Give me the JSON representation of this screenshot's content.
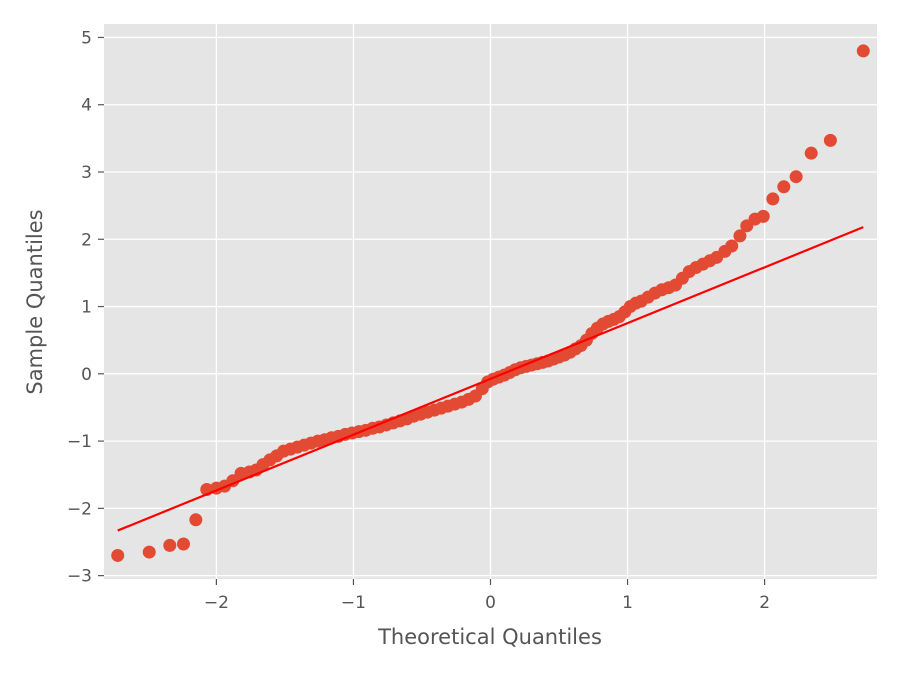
{
  "chart_data": {
    "type": "scatter",
    "title": "",
    "xlabel": "Theoretical Quantiles",
    "ylabel": "Sample Quantiles",
    "xlim": [
      -2.82,
      2.82
    ],
    "ylim": [
      -3.05,
      5.2
    ],
    "x_ticks": [
      -2,
      -1,
      0,
      1,
      2
    ],
    "x_tick_labels": [
      "−2",
      "−1",
      "0",
      "1",
      "2"
    ],
    "y_ticks": [
      -3,
      -2,
      -1,
      0,
      1,
      2,
      3,
      4,
      5
    ],
    "y_tick_labels": [
      "−3",
      "−2",
      "−1",
      "0",
      "1",
      "2",
      "3",
      "4",
      "5"
    ],
    "grid": true,
    "colors": {
      "background": "#E5E5E5",
      "grid": "#FFFFFF",
      "points": "#E24A33",
      "line": "#FF0000",
      "text": "#555555"
    },
    "reference_line": {
      "x": [
        -2.72,
        2.72
      ],
      "y": [
        -2.33,
        2.18
      ]
    },
    "series": [
      {
        "points": [
          [
            -2.72,
            -2.7
          ],
          [
            -2.49,
            -2.65
          ],
          [
            -2.34,
            -2.55
          ],
          [
            -2.24,
            -2.53
          ],
          [
            -2.15,
            -2.17
          ],
          [
            -2.07,
            -1.72
          ],
          [
            -2.0,
            -1.7
          ],
          [
            -1.94,
            -1.67
          ],
          [
            -1.88,
            -1.59
          ],
          [
            -1.82,
            -1.48
          ],
          [
            -1.76,
            -1.46
          ],
          [
            -1.71,
            -1.43
          ],
          [
            -1.66,
            -1.35
          ],
          [
            -1.61,
            -1.28
          ],
          [
            -1.56,
            -1.22
          ],
          [
            -1.51,
            -1.15
          ],
          [
            -1.46,
            -1.12
          ],
          [
            -1.41,
            -1.09
          ],
          [
            -1.36,
            -1.06
          ],
          [
            -1.31,
            -1.03
          ],
          [
            -1.26,
            -1.0
          ],
          [
            -1.21,
            -0.98
          ],
          [
            -1.16,
            -0.95
          ],
          [
            -1.11,
            -0.93
          ],
          [
            -1.06,
            -0.9
          ],
          [
            -1.01,
            -0.88
          ],
          [
            -0.96,
            -0.86
          ],
          [
            -0.91,
            -0.84
          ],
          [
            -0.86,
            -0.81
          ],
          [
            -0.81,
            -0.79
          ],
          [
            -0.76,
            -0.76
          ],
          [
            -0.71,
            -0.73
          ],
          [
            -0.66,
            -0.7
          ],
          [
            -0.61,
            -0.67
          ],
          [
            -0.56,
            -0.63
          ],
          [
            -0.51,
            -0.6
          ],
          [
            -0.46,
            -0.57
          ],
          [
            -0.41,
            -0.54
          ],
          [
            -0.36,
            -0.51
          ],
          [
            -0.31,
            -0.48
          ],
          [
            -0.26,
            -0.45
          ],
          [
            -0.21,
            -0.42
          ],
          [
            -0.16,
            -0.38
          ],
          [
            -0.11,
            -0.33
          ],
          [
            -0.06,
            -0.22
          ],
          [
            -0.02,
            -0.12
          ],
          [
            0.02,
            -0.08
          ],
          [
            0.06,
            -0.05
          ],
          [
            0.1,
            -0.02
          ],
          [
            0.14,
            0.02
          ],
          [
            0.18,
            0.06
          ],
          [
            0.22,
            0.09
          ],
          [
            0.26,
            0.11
          ],
          [
            0.3,
            0.13
          ],
          [
            0.34,
            0.15
          ],
          [
            0.38,
            0.17
          ],
          [
            0.42,
            0.19
          ],
          [
            0.46,
            0.22
          ],
          [
            0.5,
            0.25
          ],
          [
            0.54,
            0.28
          ],
          [
            0.58,
            0.32
          ],
          [
            0.62,
            0.37
          ],
          [
            0.66,
            0.42
          ],
          [
            0.7,
            0.5
          ],
          [
            0.74,
            0.6
          ],
          [
            0.78,
            0.68
          ],
          [
            0.82,
            0.74
          ],
          [
            0.86,
            0.78
          ],
          [
            0.9,
            0.81
          ],
          [
            0.94,
            0.85
          ],
          [
            0.98,
            0.92
          ],
          [
            1.02,
            1.0
          ],
          [
            1.06,
            1.05
          ],
          [
            1.1,
            1.08
          ],
          [
            1.15,
            1.14
          ],
          [
            1.2,
            1.2
          ],
          [
            1.25,
            1.25
          ],
          [
            1.3,
            1.28
          ],
          [
            1.35,
            1.32
          ],
          [
            1.4,
            1.42
          ],
          [
            1.45,
            1.52
          ],
          [
            1.5,
            1.58
          ],
          [
            1.55,
            1.63
          ],
          [
            1.6,
            1.68
          ],
          [
            1.65,
            1.73
          ],
          [
            1.71,
            1.82
          ],
          [
            1.76,
            1.9
          ],
          [
            1.82,
            2.05
          ],
          [
            1.87,
            2.2
          ],
          [
            1.93,
            2.3
          ],
          [
            1.99,
            2.34
          ],
          [
            2.06,
            2.6
          ],
          [
            2.14,
            2.78
          ],
          [
            2.23,
            2.93
          ],
          [
            2.34,
            3.28
          ],
          [
            2.48,
            3.47
          ],
          [
            2.72,
            4.8
          ]
        ]
      }
    ]
  }
}
